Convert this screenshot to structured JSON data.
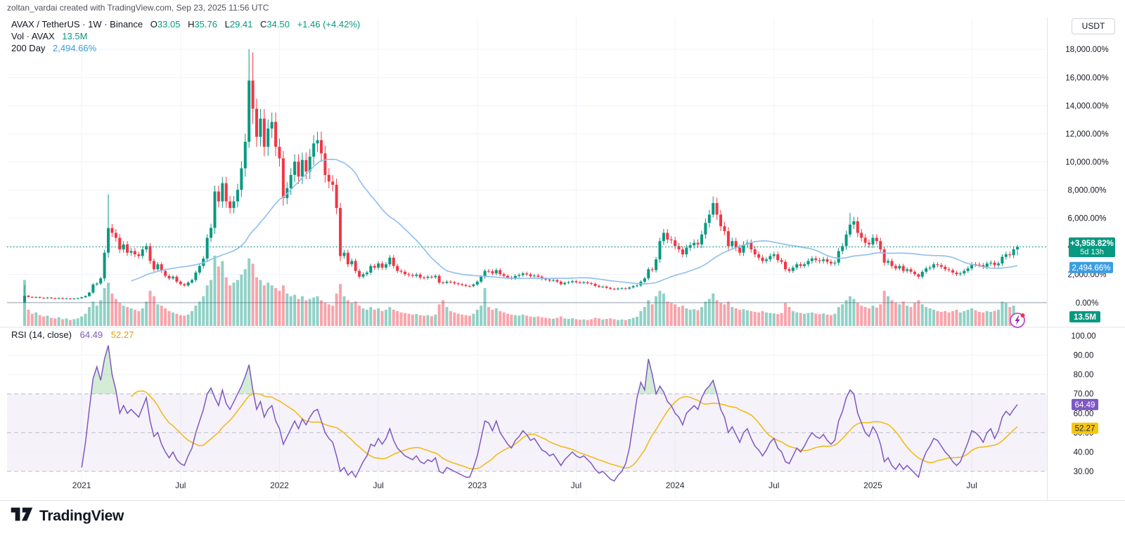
{
  "header": {
    "attribution": "zoltan_vardai created with TradingView.com, Sep 23, 2025 11:56 UTC"
  },
  "legend": {
    "title": "AVAX / TetherUS · 1W · Binance",
    "ohlc": {
      "o_key": "O",
      "o_val": "33.05",
      "h_key": "H",
      "h_val": "35.76",
      "l_key": "L",
      "l_val": "29.41",
      "c_key": "C",
      "c_val": "34.50",
      "change": "+1.46 (+4.42%)"
    },
    "vol_label": "Vol · AVAX",
    "vol_value": "13.5M",
    "ma_label": "200 Day",
    "ma_value": "2,494.66%",
    "rsi_label": "RSI (14, close)",
    "rsi_value": "64.49",
    "rsi_ma_value": "52.27"
  },
  "axis": {
    "currency_button": "USDT",
    "price_labels": [
      {
        "pct": 18000,
        "label": "18,000.00%"
      },
      {
        "pct": 16000,
        "label": "16,000.00%"
      },
      {
        "pct": 14000,
        "label": "14,000.00%"
      },
      {
        "pct": 12000,
        "label": "12,000.00%"
      },
      {
        "pct": 10000,
        "label": "10,000.00%"
      },
      {
        "pct": 8000,
        "label": "8,000.00%"
      },
      {
        "pct": 6000,
        "label": "6,000.00%"
      },
      {
        "pct": 4000,
        "label": "4,000.00%"
      },
      {
        "pct": 2000,
        "label": "2,000.00%"
      },
      {
        "pct": 0,
        "label": "0.00%"
      }
    ],
    "price_badge": {
      "line1": "+3,958.82%",
      "line2": "5d 13h"
    },
    "ma_badge": "2,494.66%",
    "volume_badge": "13.5M",
    "rsi_labels": [
      {
        "v": 100,
        "label": "100.00"
      },
      {
        "v": 90,
        "label": "90.00"
      },
      {
        "v": 80,
        "label": "80.00"
      },
      {
        "v": 70,
        "label": "70.00"
      },
      {
        "v": 60,
        "label": "60.00"
      },
      {
        "v": 50,
        "label": "50.00"
      },
      {
        "v": 40,
        "label": "40.00"
      },
      {
        "v": 30,
        "label": "30.00"
      }
    ],
    "rsi_badge": "64.49",
    "rsi_ma_badge": "52.27",
    "time_labels": [
      {
        "week": 15,
        "label": "2021"
      },
      {
        "week": 41,
        "label": "Jul"
      },
      {
        "week": 67,
        "label": "2022"
      },
      {
        "week": 93,
        "label": "Jul"
      },
      {
        "week": 119,
        "label": "2023"
      },
      {
        "week": 145,
        "label": "Jul"
      },
      {
        "week": 171,
        "label": "2024"
      },
      {
        "week": 197,
        "label": "Jul"
      },
      {
        "week": 223,
        "label": "2025"
      },
      {
        "week": 249,
        "label": "Jul"
      }
    ]
  },
  "footer": {
    "brand": "TradingView"
  },
  "colors": {
    "up": "#089981",
    "down": "#f23645",
    "vol_up": "rgba(8,153,129,0.45)",
    "vol_down": "rgba(242,54,69,0.45)",
    "ma200": "#94c1ef",
    "price_line": "#089981",
    "rsi": "#7e57c2",
    "rsi_ma": "#f2bb1c",
    "rsi_band": "rgba(126,87,194,0.08)",
    "rsi_dash": "#9aa0af",
    "rsi_fill": "rgba(102,187,106,0.28)",
    "badge_ma": "#3c9ee0",
    "badge_rsi": "#7e57c2",
    "badge_rsi_ma": "#f6c70e",
    "grid": "#f0f3fa",
    "zero_line": "#b8bcc6",
    "axis_text": "#131722",
    "sep": "#e0e3eb"
  },
  "chart_data": {
    "type": "candlestick+volume+rsi",
    "symbol": "AVAX/TetherUS",
    "exchange": "Binance",
    "timeframe": "1W",
    "unit": "percent change since series start",
    "weeks": 262,
    "ylim_pct": [
      0,
      18000
    ],
    "rsi_range": [
      30,
      100
    ],
    "last_candle_usd": {
      "o": 33.05,
      "h": 35.76,
      "l": 29.41,
      "c": 34.5,
      "change": 1.46,
      "change_pct": 4.42
    },
    "last_close_pct": 3958.82,
    "ma200d_now_pct": 2494.66,
    "volume_now_m": 13.5,
    "rsi_now": 64.49,
    "rsi_ma_now": 52.27,
    "price_closes_pct": [
      490,
      406,
      371,
      394,
      347,
      324,
      359,
      312,
      288,
      324,
      276,
      300,
      265,
      288,
      312,
      382,
      465,
      712,
      1288,
      1359,
      1724,
      3547,
      5300,
      4959,
      4606,
      3782,
      4135,
      3547,
      3665,
      3429,
      3312,
      3782,
      4018,
      2959,
      2371,
      2724,
      2253,
      1900,
      1724,
      1841,
      1488,
      1312,
      1218,
      1429,
      1606,
      2135,
      2606,
      3135,
      4606,
      5312,
      7900,
      7194,
      8488,
      7194,
      6724,
      7194,
      8018,
      9547,
      11429,
      15782,
      13782,
      11782,
      13076,
      11076,
      12371,
      12841,
      11076,
      10253,
      7429,
      8135,
      9076,
      10018,
      8959,
      10135,
      9312,
      10371,
      11312,
      11547,
      10606,
      9076,
      8606,
      8371,
      6724,
      3312,
      3547,
      2724,
      2959,
      2253,
      1841,
      2018,
      2135,
      2606,
      2488,
      2782,
      2488,
      2724,
      3194,
      2606,
      2253,
      2194,
      2018,
      1959,
      1900,
      1994,
      1782,
      1759,
      1841,
      1806,
      1900,
      1429,
      1406,
      1488,
      1453,
      1371,
      1312,
      1253,
      1182,
      1171,
      1288,
      1488,
      1841,
      2253,
      2229,
      2076,
      2312,
      2018,
      1900,
      1782,
      1724,
      1900,
      1959,
      2076,
      2006,
      1876,
      1924,
      1841,
      1688,
      1641,
      1571,
      1606,
      1488,
      1312,
      1406,
      1453,
      1524,
      1453,
      1418,
      1441,
      1382,
      1335,
      1194,
      1124,
      1135,
      1053,
      982,
      959,
      1006,
      1018,
      994,
      1076,
      1171,
      1218,
      1488,
      1724,
      2371,
      2312,
      3076,
      4371,
      4959,
      4488,
      4429,
      4018,
      3782,
      3429,
      3900,
      4076,
      4253,
      4135,
      4841,
      5665,
      6253,
      7076,
      6253,
      5429,
      5076,
      4018,
      4371,
      3900,
      3547,
      4135,
      4253,
      3782,
      3429,
      3194,
      2959,
      3076,
      3312,
      3429,
      3018,
      2900,
      2371,
      2253,
      2488,
      2724,
      2606,
      2724,
      2959,
      3135,
      3018,
      2959,
      3076,
      2900,
      2782,
      2841,
      3665,
      4018,
      4841,
      5547,
      5782,
      4959,
      4606,
      4253,
      4135,
      4606,
      4371,
      3782,
      2841,
      2959,
      2606,
      2429,
      2606,
      2253,
      2371,
      2194,
      2018,
      1841,
      2194,
      2429,
      2488,
      2724,
      2665,
      2547,
      2371,
      2312,
      2135,
      2018,
      2076,
      2253,
      2429,
      2724,
      2700,
      2665,
      2547,
      2782,
      2841,
      2665,
      2782,
      3253,
      3429,
      3371,
      3788,
      3959
    ],
    "price_overrides": {
      "0": [
        0,
        1250,
        -25,
        490
      ],
      "22": [
        3547,
        7700,
        3200,
        5300
      ],
      "59": [
        11429,
        18018,
        11000,
        15782
      ],
      "60": [
        15782,
        17782,
        12700,
        13782
      ],
      "181": [
        6253,
        7547,
        6050,
        7076
      ],
      "217": [
        4841,
        6371,
        4650,
        5547
      ],
      "235": [
        2018,
        2080,
        1700,
        1841
      ],
      "261": [
        3788,
        4107,
        3360,
        3959
      ]
    },
    "volume_m": [
      170,
      60,
      45,
      50,
      40,
      35,
      38,
      30,
      28,
      32,
      25,
      28,
      22,
      25,
      28,
      35,
      45,
      70,
      90,
      75,
      95,
      140,
      160,
      120,
      100,
      85,
      75,
      70,
      65,
      60,
      55,
      65,
      90,
      130,
      110,
      80,
      75,
      65,
      55,
      50,
      45,
      40,
      38,
      42,
      55,
      75,
      90,
      110,
      150,
      170,
      260,
      220,
      240,
      180,
      150,
      160,
      170,
      190,
      210,
      250,
      230,
      180,
      170,
      150,
      160,
      150,
      140,
      130,
      150,
      120,
      110,
      115,
      100,
      110,
      95,
      100,
      105,
      110,
      95,
      85,
      80,
      75,
      120,
      155,
      110,
      95,
      85,
      90,
      75,
      65,
      60,
      70,
      60,
      65,
      55,
      60,
      70,
      60,
      55,
      50,
      48,
      45,
      42,
      44,
      40,
      38,
      40,
      36,
      42,
      80,
      95,
      70,
      55,
      50,
      45,
      42,
      40,
      38,
      45,
      60,
      75,
      140,
      70,
      60,
      65,
      55,
      50,
      45,
      42,
      40,
      38,
      42,
      38,
      35,
      33,
      35,
      32,
      30,
      28,
      27,
      30,
      35,
      28,
      26,
      28,
      25,
      23,
      24,
      22,
      25,
      30,
      28,
      24,
      26,
      28,
      25,
      22,
      24,
      22,
      26,
      30,
      34,
      55,
      70,
      95,
      80,
      110,
      130,
      120,
      90,
      85,
      80,
      70,
      75,
      65,
      60,
      62,
      58,
      70,
      90,
      100,
      120,
      95,
      85,
      80,
      90,
      70,
      65,
      60,
      62,
      58,
      55,
      52,
      50,
      55,
      50,
      48,
      46,
      44,
      48,
      85,
      70,
      55,
      50,
      48,
      45,
      48,
      50,
      46,
      44,
      46,
      42,
      40,
      45,
      70,
      80,
      95,
      110,
      100,
      85,
      75,
      70,
      65,
      75,
      68,
      80,
      130,
      110,
      95,
      85,
      80,
      90,
      75,
      70,
      85,
      95,
      80,
      70,
      65,
      60,
      55,
      52,
      55,
      50,
      55,
      60,
      50,
      55,
      60,
      65,
      58,
      52,
      50,
      55,
      52,
      56,
      60,
      90,
      85,
      70,
      75,
      13.5
    ],
    "rsi": [
      null,
      null,
      null,
      null,
      null,
      null,
      null,
      null,
      null,
      null,
      null,
      null,
      null,
      null,
      null,
      32,
      45,
      62,
      78,
      84,
      77,
      88,
      95,
      80,
      72,
      60,
      64,
      60,
      62,
      60,
      58,
      63,
      68,
      56,
      48,
      50,
      44,
      40,
      37,
      40,
      36,
      34,
      33,
      38,
      42,
      50,
      56,
      62,
      70,
      73,
      68,
      64,
      72,
      65,
      62,
      66,
      70,
      74,
      79,
      85,
      72,
      62,
      66,
      58,
      62,
      64,
      56,
      52,
      44,
      48,
      52,
      56,
      52,
      57,
      54,
      58,
      61,
      62,
      56,
      50,
      47,
      45,
      38,
      30,
      32,
      28,
      30,
      27,
      31,
      35,
      38,
      44,
      43,
      47,
      44,
      47,
      52,
      46,
      42,
      40,
      38,
      37,
      36,
      38,
      35,
      34,
      36,
      35,
      37,
      30,
      29,
      32,
      31,
      30,
      29,
      28,
      27,
      27,
      32,
      38,
      47,
      56,
      55,
      51,
      56,
      50,
      47,
      44,
      42,
      46,
      48,
      51,
      49,
      46,
      47,
      44,
      41,
      40,
      38,
      39,
      36,
      33,
      36,
      38,
      40,
      38,
      37,
      38,
      36,
      34,
      31,
      29,
      30,
      28,
      26,
      25,
      28,
      30,
      34,
      42,
      55,
      68,
      76,
      72,
      88,
      80,
      70,
      74,
      71,
      66,
      64,
      60,
      58,
      54,
      60,
      62,
      64,
      62,
      68,
      72,
      74,
      77,
      70,
      62,
      58,
      50,
      53,
      49,
      45,
      50,
      52,
      47,
      43,
      41,
      38,
      41,
      45,
      47,
      42,
      40,
      35,
      34,
      38,
      42,
      40,
      43,
      47,
      50,
      48,
      47,
      49,
      46,
      44,
      46,
      56,
      61,
      68,
      72,
      70,
      60,
      55,
      50,
      48,
      53,
      50,
      44,
      35,
      37,
      33,
      31,
      34,
      31,
      33,
      31,
      29,
      27,
      35,
      40,
      43,
      47,
      46,
      43,
      40,
      38,
      35,
      33,
      35,
      40,
      45,
      51,
      50,
      48,
      45,
      50,
      52,
      47,
      51,
      58,
      61,
      59,
      62,
      64.49
    ]
  }
}
